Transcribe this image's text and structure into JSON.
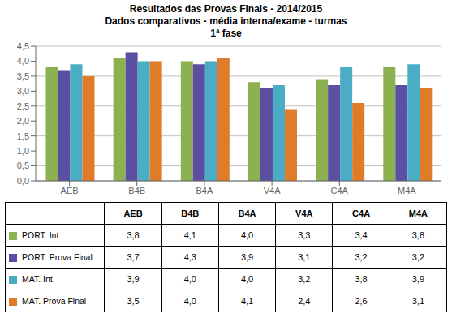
{
  "chart_data": {
    "type": "bar",
    "title": "Resultados das Provas Finais - 2014/2015",
    "subtitle": [
      "Dados comparativos - média interna/exame - turmas",
      "1ª fase"
    ],
    "categories": [
      "AEB",
      "B4B",
      "B4A",
      "V4A",
      "C4A",
      "M4A"
    ],
    "series": [
      {
        "name": "PORT. Int",
        "color": "#8db050",
        "values": [
          3.8,
          4.1,
          4.0,
          3.3,
          3.4,
          3.8
        ],
        "value_labels": [
          "3,8",
          "4,1",
          "4,0",
          "3,3",
          "3,4",
          "3,8"
        ]
      },
      {
        "name": "PORT. Prova Final",
        "color": "#5a4fa0",
        "values": [
          3.7,
          4.3,
          3.9,
          3.1,
          3.2,
          3.2
        ],
        "value_labels": [
          "3,7",
          "4,3",
          "3,9",
          "3,1",
          "3,2",
          "3,2"
        ]
      },
      {
        "name": "MAT. Int",
        "color": "#4bacc6",
        "values": [
          3.9,
          4.0,
          4.0,
          3.2,
          3.8,
          3.9
        ],
        "value_labels": [
          "3,9",
          "4,0",
          "4,0",
          "3,2",
          "3,8",
          "3,9"
        ]
      },
      {
        "name": "MAT. Prova Final",
        "color": "#e07b2a",
        "values": [
          3.5,
          4.0,
          4.1,
          2.4,
          2.6,
          3.1
        ],
        "value_labels": [
          "3,5",
          "4,0",
          "4,1",
          "2,4",
          "2,6",
          "3,1"
        ]
      }
    ],
    "ylim": [
      0,
      4.5
    ],
    "yticks": [
      {
        "value": 0.0,
        "label": "0,0"
      },
      {
        "value": 0.5,
        "label": "0,5"
      },
      {
        "value": 1.0,
        "label": "1,0"
      },
      {
        "value": 1.5,
        "label": "1,5"
      },
      {
        "value": 2.0,
        "label": "2,0"
      },
      {
        "value": 2.5,
        "label": "2,5"
      },
      {
        "value": 3.0,
        "label": "3,0"
      },
      {
        "value": 3.5,
        "label": "3,5"
      },
      {
        "value": 4.0,
        "label": "4,0"
      },
      {
        "value": 4.5,
        "label": "4,5"
      }
    ],
    "grid": true,
    "legend": "bottom"
  }
}
